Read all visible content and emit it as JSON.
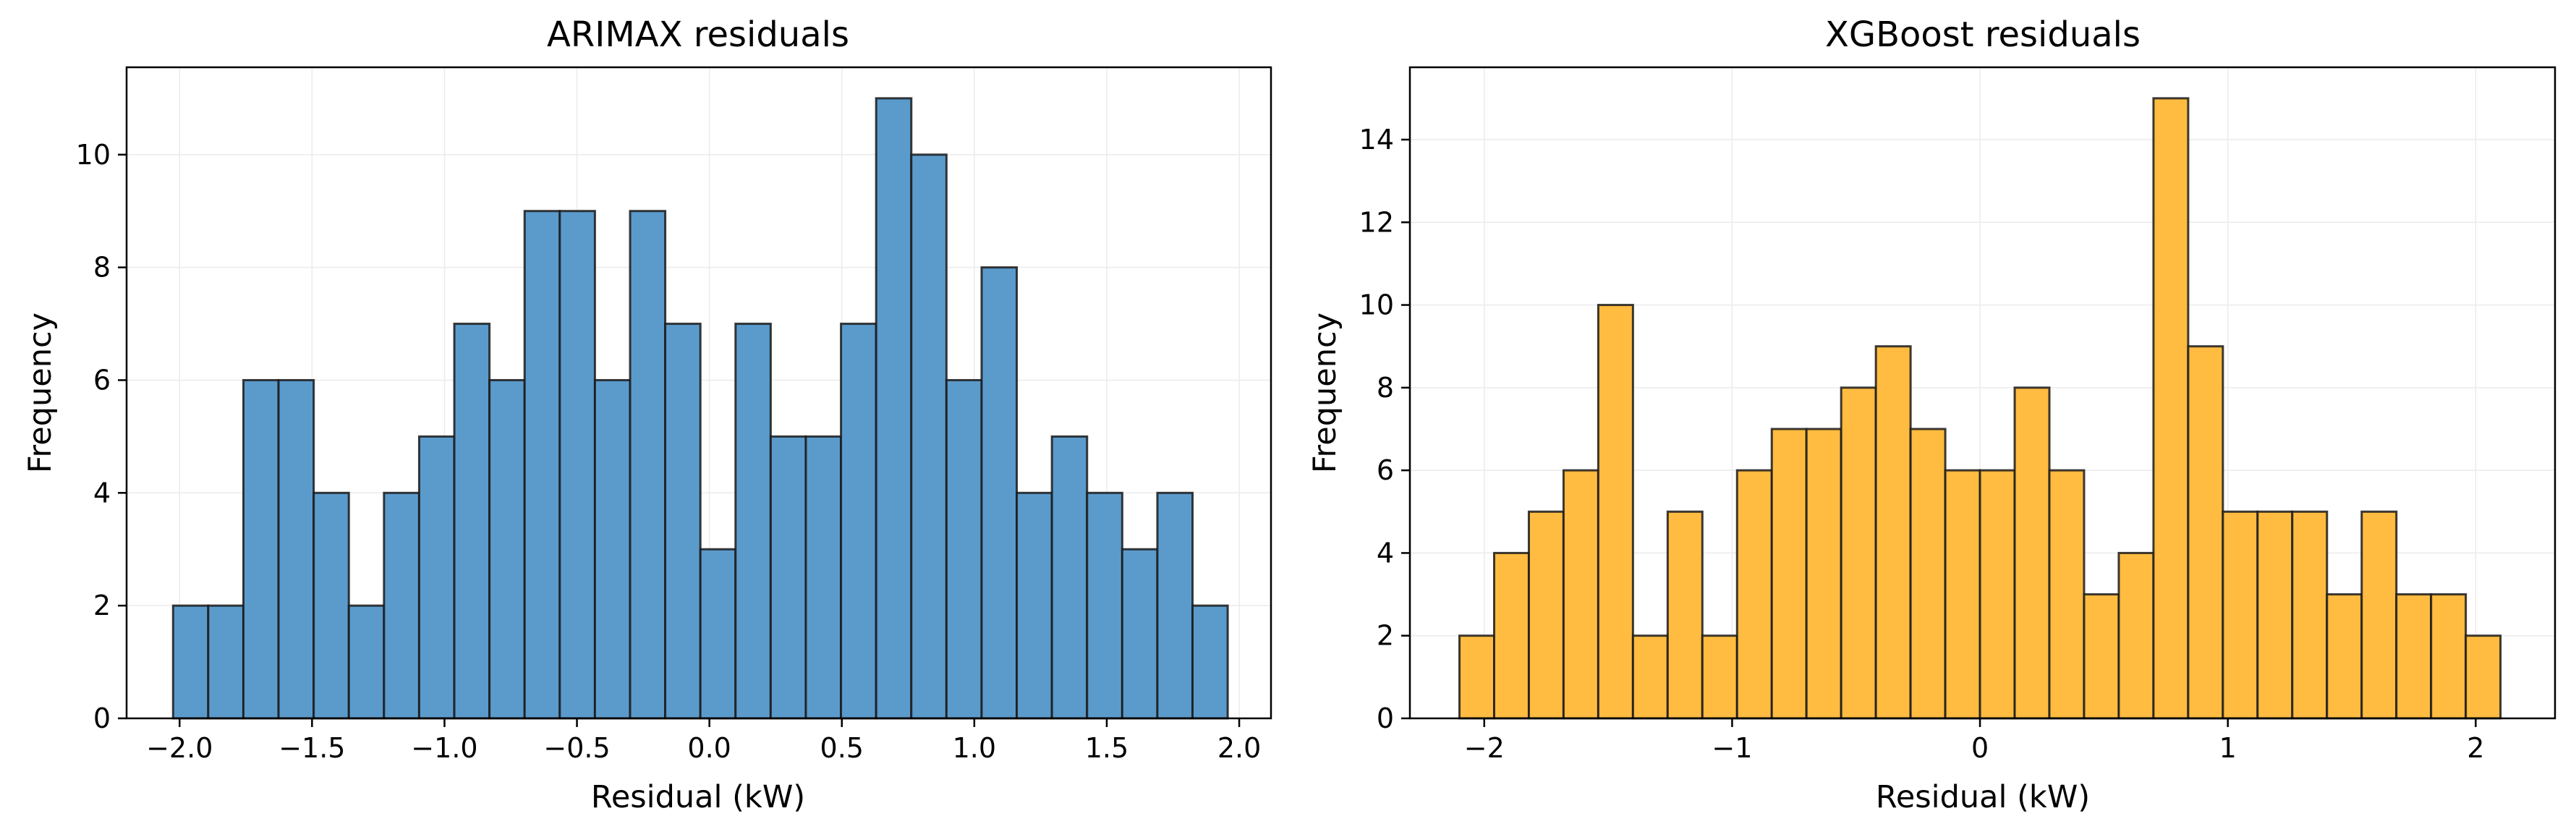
{
  "colors": {
    "arimax_bars": "#5b9bcc",
    "xgboost_bars": "#ffbc41",
    "bar_edge": "#1a1a1a",
    "grid": "#ebebeb",
    "axes": "#000000"
  },
  "chart_data": [
    {
      "type": "bar",
      "histogram": true,
      "title": "ARIMAX residuals",
      "xlabel": "Residual (kW)",
      "ylabel": "Frequency",
      "grid": true,
      "xlim": [
        -2.2,
        2.12
      ],
      "ylim": [
        0,
        11.55
      ],
      "xticks": [
        -2.0,
        -1.5,
        -1.0,
        -0.5,
        0.0,
        0.5,
        1.0,
        1.5,
        2.0
      ],
      "xtick_labels": [
        "−2.0",
        "−1.5",
        "−1.0",
        "−0.5",
        "0.0",
        "0.5",
        "1.0",
        "1.5",
        "2.0"
      ],
      "yticks": [
        0,
        2,
        4,
        6,
        8,
        10
      ],
      "ytick_labels": [
        "0",
        "2",
        "4",
        "6",
        "8",
        "10"
      ],
      "bin_start": -2.0245,
      "bin_width": 0.1327,
      "values": [
        2,
        2,
        6,
        6,
        4,
        2,
        4,
        5,
        7,
        6,
        9,
        9,
        6,
        9,
        7,
        3,
        7,
        5,
        5,
        7,
        11,
        10,
        6,
        8,
        4,
        5,
        4,
        3,
        4,
        2
      ]
    },
    {
      "type": "bar",
      "histogram": true,
      "title": "XGBoost residuals",
      "xlabel": "Residual (kW)",
      "ylabel": "Frequency",
      "grid": true,
      "xlim": [
        -2.3,
        2.32
      ],
      "ylim": [
        0,
        15.75
      ],
      "xticks": [
        -2,
        -1,
        0,
        1,
        2
      ],
      "xtick_labels": [
        "−2",
        "−1",
        "0",
        "1",
        "2"
      ],
      "yticks": [
        0,
        2,
        4,
        6,
        8,
        10,
        12,
        14
      ],
      "ytick_labels": [
        "0",
        "2",
        "4",
        "6",
        "8",
        "10",
        "12",
        "14"
      ],
      "bin_start": -2.1,
      "bin_width": 0.14,
      "values": [
        2,
        4,
        5,
        6,
        10,
        2,
        5,
        2,
        6,
        7,
        7,
        8,
        9,
        7,
        6,
        6,
        8,
        6,
        3,
        4,
        15,
        9,
        5,
        5,
        5,
        3,
        5,
        3,
        3,
        2
      ]
    }
  ]
}
